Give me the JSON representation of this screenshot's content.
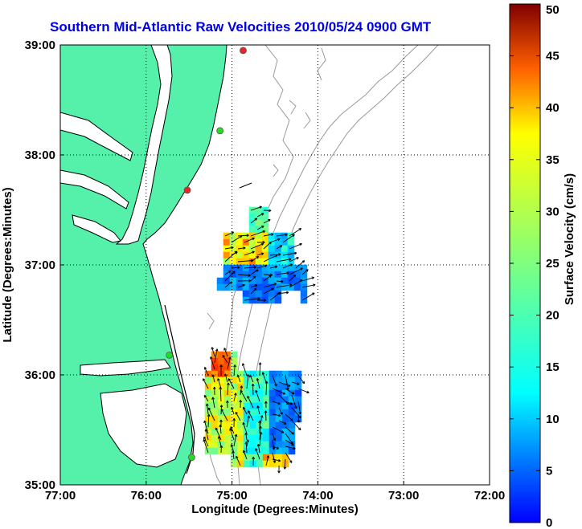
{
  "title": "Southern Mid-Atlantic Raw Velocities 2010/05/24 0900 GMT",
  "x_axis": {
    "label": "Longitude (Degrees:Minutes)",
    "ticks": [
      {
        "value": -77,
        "label": "77:00"
      },
      {
        "value": -76,
        "label": "76:00"
      },
      {
        "value": -75,
        "label": "75:00"
      },
      {
        "value": -74,
        "label": "74:00"
      },
      {
        "value": -73,
        "label": "73:00"
      },
      {
        "value": -72,
        "label": "72:00"
      }
    ],
    "range": [
      -77,
      -72
    ]
  },
  "y_axis": {
    "label": "Latitude (Degrees:Minutes)",
    "ticks": [
      {
        "value": 39,
        "label": "39:00"
      },
      {
        "value": 38,
        "label": "38:00"
      },
      {
        "value": 37,
        "label": "37:00"
      },
      {
        "value": 36,
        "label": "36:00"
      },
      {
        "value": 35,
        "label": "35:00"
      }
    ],
    "range": [
      35,
      39
    ]
  },
  "colorbar": {
    "label": "Surface Velocity (cm/s)",
    "range": [
      0,
      50
    ],
    "ticks": [
      "0",
      "5",
      "10",
      "15",
      "20",
      "25",
      "30",
      "35",
      "40",
      "45",
      "50"
    ],
    "colormap": "jet"
  },
  "colors": {
    "land": "#55f0aa",
    "title": "#0000e6",
    "bathymetry": "#999999",
    "station_active": "#22dd22",
    "station_inactive": "#ee2222"
  },
  "stations": [
    {
      "lon": -74.87,
      "lat": 38.95,
      "status": "inactive"
    },
    {
      "lon": -75.14,
      "lat": 38.22,
      "status": "active"
    },
    {
      "lon": -75.52,
      "lat": 37.68,
      "status": "inactive"
    },
    {
      "lon": -75.73,
      "lat": 36.18,
      "status": "active"
    },
    {
      "lon": -75.47,
      "lat": 35.25,
      "status": "active"
    }
  ],
  "velocity_regions": [
    {
      "name": "northern-patch",
      "lon_range": [
        -75.45,
        -74.3
      ],
      "lat_range": [
        36.77,
        37.52
      ]
    },
    {
      "name": "southern-patch",
      "lon_range": [
        -75.55,
        -74.15
      ],
      "lat_range": [
        35.2,
        36.22
      ]
    }
  ]
}
